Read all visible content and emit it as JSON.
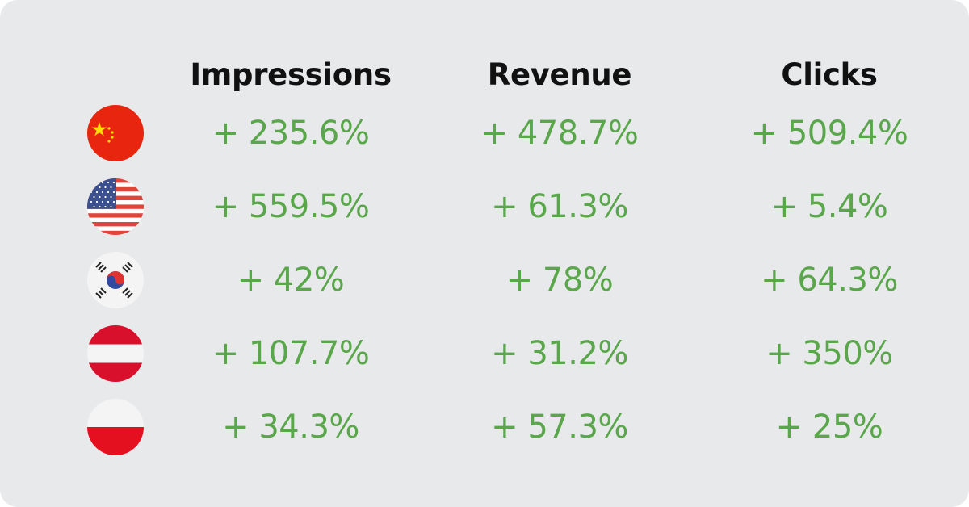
{
  "columns": [
    "Impressions",
    "Revenue",
    "Clicks"
  ],
  "rows": [
    {
      "flag": "china-flag-icon",
      "values": [
        "+ 235.6%",
        "+ 478.7%",
        "+ 509.4%"
      ]
    },
    {
      "flag": "usa-flag-icon",
      "values": [
        "+ 559.5%",
        "+ 61.3%",
        "+ 5.4%"
      ]
    },
    {
      "flag": "south-korea-flag-icon",
      "values": [
        "+ 42%",
        "+ 78%",
        "+ 64.3%"
      ]
    },
    {
      "flag": "austria-flag-icon",
      "values": [
        "+ 107.7%",
        "+ 31.2%",
        "+ 350%"
      ]
    },
    {
      "flag": "poland-flag-icon",
      "values": [
        "+ 34.3%",
        "+ 57.3%",
        "+ 25%"
      ]
    }
  ],
  "colors": {
    "background": "#e8e9eb",
    "header": "#111111",
    "value": "#5aa74b"
  }
}
